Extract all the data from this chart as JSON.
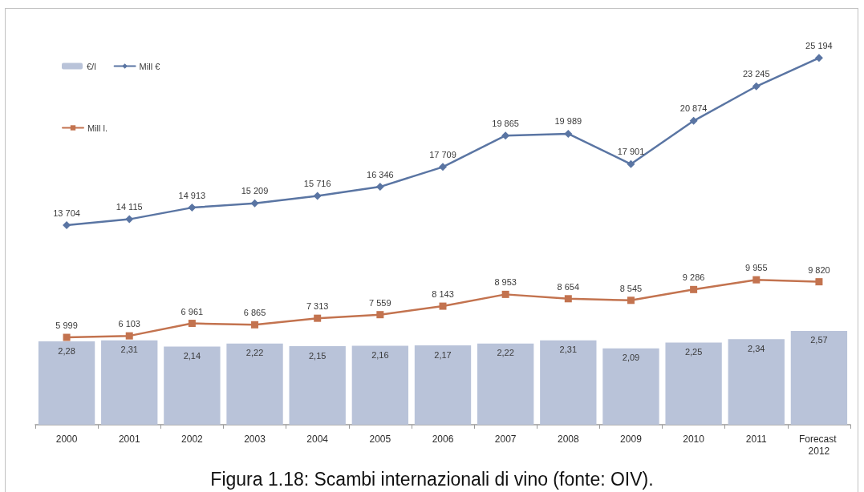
{
  "chart_data": {
    "type": "bar",
    "categories": [
      "2000",
      "2001",
      "2002",
      "2003",
      "2004",
      "2005",
      "2006",
      "2007",
      "2008",
      "2009",
      "2010",
      "2011",
      "Forecast 2012"
    ],
    "series": [
      {
        "name": "€/l",
        "color": "#b9c3d9",
        "values": [
          2.28,
          2.31,
          2.14,
          2.22,
          2.15,
          2.16,
          2.17,
          2.22,
          2.31,
          2.09,
          2.25,
          2.34,
          2.57
        ],
        "value_labels": [
          "2,28",
          "2,31",
          "2,14",
          "2,22",
          "2,15",
          "2,16",
          "2,17",
          "2,22",
          "2,31",
          "2,09",
          "2,25",
          "2,34",
          "2,57"
        ]
      },
      {
        "name": "Mill €",
        "type": "line",
        "axis": "y2",
        "color": "#5a75a3",
        "marker": "diamond",
        "values": [
          13704,
          14115,
          14913,
          15209,
          15716,
          16346,
          17709,
          19865,
          19989,
          17901,
          20874,
          23245,
          25194
        ],
        "value_labels": [
          "13 704",
          "14 115",
          "14 913",
          "15 209",
          "15 716",
          "16 346",
          "17 709",
          "19 865",
          "19 989",
          "17 901",
          "20 874",
          "23 245",
          "25 194"
        ]
      },
      {
        "name": "Mill l.",
        "type": "line",
        "axis": "y2",
        "color": "#c3734f",
        "marker": "square",
        "values": [
          5999,
          6103,
          6961,
          6865,
          7313,
          7559,
          8143,
          8953,
          8654,
          8545,
          9286,
          9955,
          9820
        ],
        "value_labels": [
          "5 999",
          "6 103",
          "6 961",
          "6 865",
          "7 313",
          "7 559",
          "8 143",
          "8 953",
          "8 654",
          "8 545",
          "9 286",
          "9 955",
          "9 820"
        ]
      }
    ],
    "ylim": [
      0,
      11.4
    ],
    "y2lim": [
      0,
      28600
    ],
    "tick_labels": "x",
    "legend": "top left",
    "annotations": [
      "Figura 1.18: Scambi internazionali di vino (fonte: OIV)."
    ]
  }
}
